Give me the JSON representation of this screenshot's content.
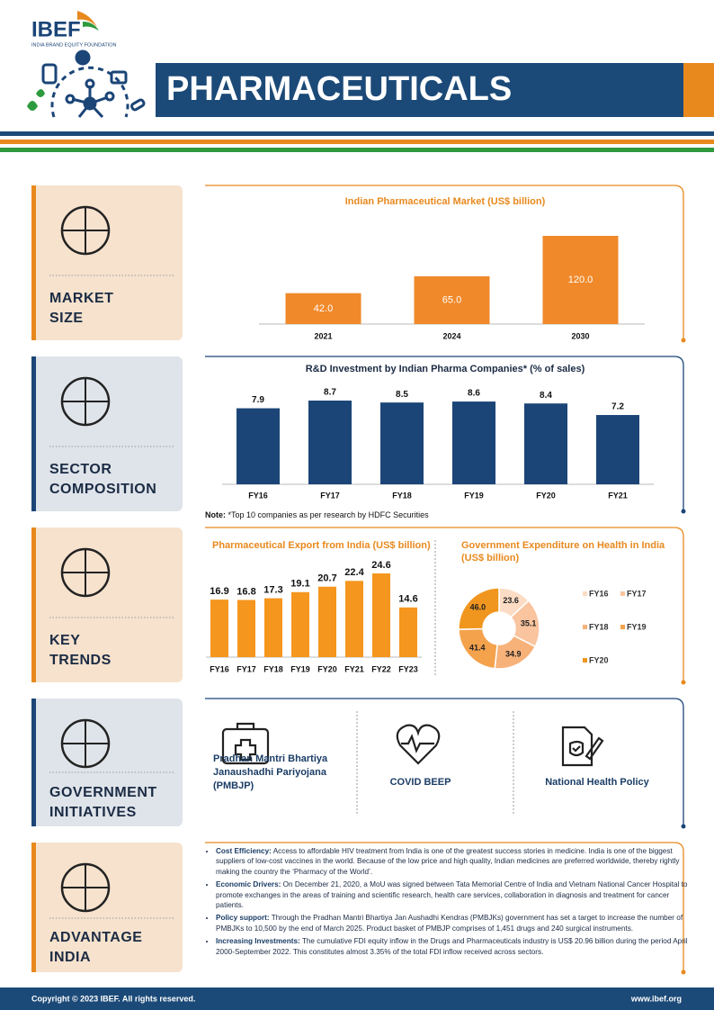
{
  "header": {
    "logo": "IBEF",
    "logo_sub": "INDIA BRAND EQUITY FOUNDATION",
    "title": "PHARMACEUTICALS"
  },
  "sections": [
    [
      "MARKET",
      "SIZE"
    ],
    [
      "SECTOR",
      "COMPOSITION"
    ],
    [
      "KEY",
      "TRENDS"
    ],
    [
      "GOVERNMENT",
      "INITIATIVES"
    ],
    [
      "ADVANTAGE",
      "INDIA"
    ]
  ],
  "chart_data": [
    {
      "type": "bar",
      "title": "Indian Pharmaceutical Market (US$ billion)",
      "categories": [
        "2021",
        "2024",
        "2030"
      ],
      "values": [
        42,
        65,
        120
      ],
      "value_labels": [
        "42.0",
        "65.0",
        "120.0"
      ],
      "color": "#f0892a"
    },
    {
      "type": "bar",
      "title": "R&D Investment by Indian Pharma Companies* (% of sales)",
      "categories": [
        "FY16",
        "FY17",
        "FY18",
        "FY19",
        "FY20",
        "FY21"
      ],
      "values": [
        7.9,
        8.7,
        8.5,
        8.6,
        8.4,
        7.2
      ],
      "color": "#1b4577",
      "note_label": "Note:",
      "note": "*Top 10 companies as per research by HDFC Securities"
    },
    {
      "type": "bar",
      "title": "Pharmaceutical Export from India (US$ billion)",
      "categories": [
        "FY16",
        "FY17",
        "FY18",
        "FY19",
        "FY20",
        "FY21",
        "FY22",
        "FY23"
      ],
      "values": [
        16.9,
        16.8,
        17.3,
        19.1,
        20.7,
        22.4,
        24.6,
        14.6
      ],
      "color": "#f5961e"
    },
    {
      "type": "pie",
      "title": "Government Expenditure on Health in India (US$ billion)",
      "categories": [
        "FY16",
        "FY17",
        "FY18",
        "FY19",
        "FY20"
      ],
      "values": [
        23.6,
        35.1,
        34.9,
        41.4,
        46.0
      ],
      "value_labels": [
        "23.6",
        "35.1",
        "34.9",
        "41.4",
        "46.0"
      ],
      "colors": [
        "#fcdcc4",
        "#f9c49e",
        "#f7b27a",
        "#f4a24c",
        "#f0961e"
      ]
    }
  ],
  "initiatives": [
    "Pradhan Mantri Bhartiya Janaushadhi Pariyojana (PMBJP)",
    "COVID BEEP",
    "National Health Policy"
  ],
  "advantages": [
    {
      "label": "Cost Efficiency:",
      "text": "Access to affordable HIV treatment from India is one of the greatest success stories in medicine. India is one of the biggest suppliers of low-cost vaccines in the world. Because of the low price and high quality, Indian medicines are preferred worldwide, thereby rightly making the country the ‘Pharmacy of the World’."
    },
    {
      "label": "Economic Drivers:",
      "text": "On December 21, 2020, a MoU was signed between Tata Memorial Centre of India and Vietnam National Cancer Hospital to promote exchanges in the areas of training and scientific research, health care services, collaboration in diagnosis and treatment for cancer patients."
    },
    {
      "label": "Policy support:",
      "text": "Through the Pradhan Mantri Bhartiya Jan Aushadhi Kendras (PMBJKs) government has set a target to increase the number of PMBJKs to 10,500 by the end of March 2025. Product basket of PMBJP comprises of 1,451 drugs and 240 surgical instruments."
    },
    {
      "label": "Increasing Investments:",
      "text": "The cumulative FDI equity inflow in the Drugs and Pharmaceuticals industry is US$ 20.96 billion during the period April 2000-September 2022. This constitutes almost 3.35% of the total FDI inflow received across sectors."
    }
  ],
  "footer": {
    "copyright": "Copyright © 2023  IBEF. All rights reserved.",
    "site": "www.ibef.org"
  }
}
